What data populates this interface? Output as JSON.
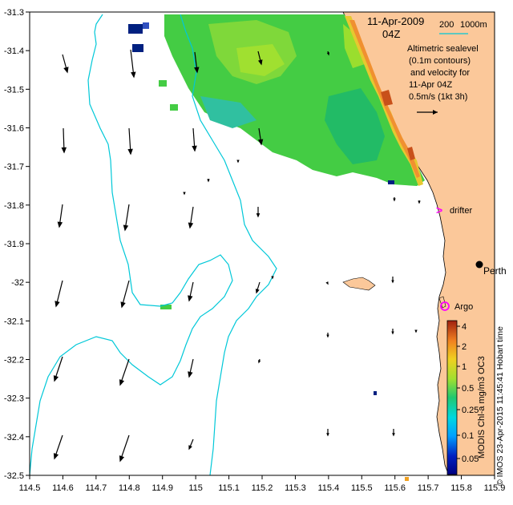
{
  "header": {
    "date": "11-Apr-2009",
    "time": "04Z"
  },
  "scale_legend": {
    "label_200": "200",
    "label_1000": "1000m",
    "color": "#00c8d8"
  },
  "info_box": {
    "line1": "Altimetric sealevel",
    "line2": "(0.1m contours)",
    "line3": "and velocity for",
    "line4": "11-Apr 04Z",
    "velocity_label": "0.5m/s (1kt 3h)"
  },
  "places": {
    "perth": "Perth",
    "drifter": "drifter",
    "argo": "Argo"
  },
  "markers": {
    "drifter_color": "#ff00ff",
    "argo_color": "#ff00ff"
  },
  "credit": {
    "vertical_text": "© IMOS 23-Apr-2015 11:45:41 Hobart time"
  },
  "colorbar": {
    "title": "MODIS Chl-a mg/m3 OC3",
    "ticks": [
      "4",
      "2",
      "1",
      "0.5",
      "0.25",
      "0.1",
      "0.05"
    ]
  },
  "axes": {
    "x_ticks": [
      "114.5",
      "114.6",
      "114.7",
      "114.8",
      "114.9",
      "115",
      "115.1",
      "115.2",
      "115.3",
      "115.4",
      "115.5",
      "115.6",
      "115.7",
      "115.8",
      "115.9"
    ],
    "y_ticks": [
      "-31.3",
      "-31.4",
      "-31.5",
      "-31.6",
      "-31.7",
      "-31.8",
      "-31.9",
      "-32",
      "-32.1",
      "-32.2",
      "-32.3",
      "-32.4",
      "-32.5"
    ]
  },
  "colors": {
    "land": "#fbc89a",
    "ocean": "#ffffff",
    "bathymetry": "#00c8d8",
    "chl_green": "#3cc83c"
  }
}
